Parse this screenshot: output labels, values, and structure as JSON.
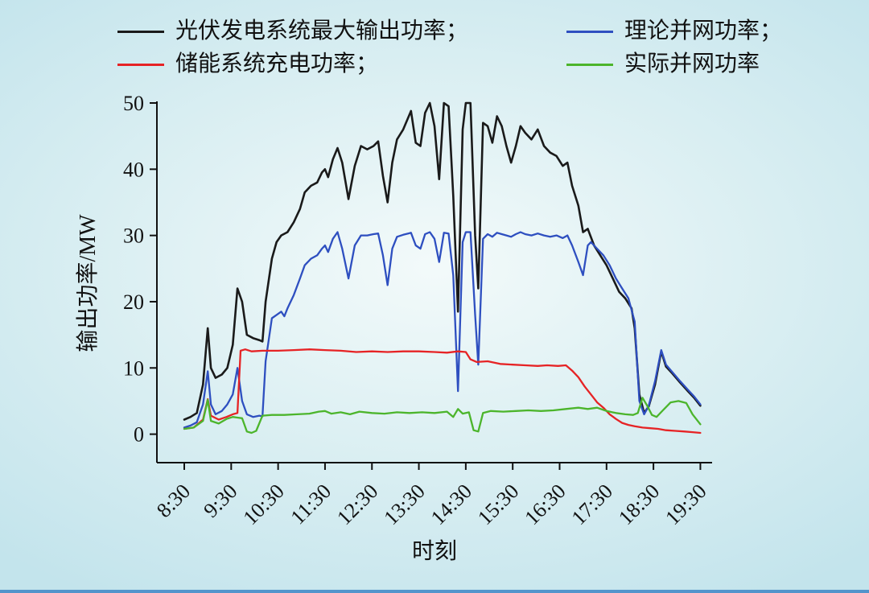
{
  "chart_data": {
    "type": "line",
    "title": "",
    "xlabel": "时刻",
    "ylabel": "输出功率/MW",
    "ylim": [
      0,
      50
    ],
    "y_ticks": [
      0,
      10,
      20,
      30,
      40,
      50
    ],
    "x_tick_labels": [
      "8:30",
      "9:30",
      "10:30",
      "11:30",
      "12:30",
      "13:30",
      "14:30",
      "15:30",
      "16:30",
      "17:30",
      "18:30",
      "19:30"
    ],
    "x_minutes_per_tick": 60,
    "grid": false,
    "legend": {
      "position": "top",
      "labels": [
        "光伏发电系统最大输出功率；",
        "理论并网功率；",
        "储能系统充电功率；",
        "实际并网功率"
      ]
    },
    "series": [
      {
        "name": "光伏发电系统最大输出功率",
        "color": "#1a1a1a",
        "width": 2.6,
        "points": [
          [
            0,
            2.2
          ],
          [
            8,
            2.6
          ],
          [
            16,
            3.2
          ],
          [
            24,
            7.5
          ],
          [
            30,
            16
          ],
          [
            34,
            10
          ],
          [
            40,
            8.5
          ],
          [
            48,
            9
          ],
          [
            55,
            10
          ],
          [
            62,
            13.5
          ],
          [
            68,
            22
          ],
          [
            74,
            20
          ],
          [
            80,
            15
          ],
          [
            88,
            14.5
          ],
          [
            96,
            14.2
          ],
          [
            100,
            14
          ],
          [
            104,
            20
          ],
          [
            112,
            26.5
          ],
          [
            118,
            29
          ],
          [
            124,
            30
          ],
          [
            132,
            30.5
          ],
          [
            140,
            32
          ],
          [
            148,
            34
          ],
          [
            154,
            36.5
          ],
          [
            162,
            37.5
          ],
          [
            170,
            38
          ],
          [
            176,
            39.5
          ],
          [
            180,
            40
          ],
          [
            184,
            38.8
          ],
          [
            190,
            41.5
          ],
          [
            196,
            43.2
          ],
          [
            202,
            41
          ],
          [
            210,
            35.5
          ],
          [
            218,
            40.5
          ],
          [
            226,
            43.5
          ],
          [
            234,
            43
          ],
          [
            242,
            43.5
          ],
          [
            248,
            44.2
          ],
          [
            254,
            39
          ],
          [
            260,
            35
          ],
          [
            266,
            41
          ],
          [
            272,
            44.5
          ],
          [
            280,
            46
          ],
          [
            290,
            48.8
          ],
          [
            296,
            44
          ],
          [
            302,
            43.5
          ],
          [
            308,
            48.5
          ],
          [
            314,
            50
          ],
          [
            320,
            46.5
          ],
          [
            326,
            38.5
          ],
          [
            332,
            50
          ],
          [
            338,
            49.5
          ],
          [
            344,
            36
          ],
          [
            350,
            18.5
          ],
          [
            356,
            46
          ],
          [
            360,
            50
          ],
          [
            366,
            50
          ],
          [
            372,
            30
          ],
          [
            376,
            22
          ],
          [
            382,
            47
          ],
          [
            388,
            46.5
          ],
          [
            394,
            44
          ],
          [
            400,
            48
          ],
          [
            406,
            46.5
          ],
          [
            412,
            43.5
          ],
          [
            418,
            41
          ],
          [
            424,
            43.5
          ],
          [
            430,
            46.5
          ],
          [
            436,
            45.5
          ],
          [
            444,
            44.5
          ],
          [
            452,
            46
          ],
          [
            460,
            43.5
          ],
          [
            468,
            42.5
          ],
          [
            476,
            42
          ],
          [
            484,
            40.5
          ],
          [
            490,
            41
          ],
          [
            496,
            37.5
          ],
          [
            504,
            34.5
          ],
          [
            510,
            30.5
          ],
          [
            516,
            31
          ],
          [
            524,
            28.5
          ],
          [
            532,
            27
          ],
          [
            540,
            25.5
          ],
          [
            548,
            23.5
          ],
          [
            556,
            21.5
          ],
          [
            564,
            20.5
          ],
          [
            572,
            19
          ],
          [
            576,
            16
          ],
          [
            582,
            6
          ],
          [
            588,
            3.2
          ],
          [
            594,
            4.2
          ],
          [
            602,
            7.5
          ],
          [
            610,
            12.5
          ],
          [
            616,
            10.2
          ],
          [
            624,
            9.2
          ],
          [
            634,
            7.8
          ],
          [
            644,
            6.5
          ],
          [
            652,
            5.5
          ],
          [
            660,
            4.3
          ]
        ]
      },
      {
        "name": "理论并网功率",
        "color": "#2e4fc0",
        "width": 2.3,
        "points": [
          [
            0,
            1.0
          ],
          [
            8,
            1.3
          ],
          [
            16,
            1.8
          ],
          [
            24,
            4.5
          ],
          [
            30,
            9.5
          ],
          [
            34,
            4.5
          ],
          [
            40,
            3
          ],
          [
            48,
            3.5
          ],
          [
            55,
            4.5
          ],
          [
            62,
            6
          ],
          [
            68,
            10
          ],
          [
            74,
            5
          ],
          [
            80,
            3
          ],
          [
            88,
            2.6
          ],
          [
            96,
            2.8
          ],
          [
            100,
            2.7
          ],
          [
            104,
            11
          ],
          [
            112,
            17.5
          ],
          [
            118,
            18
          ],
          [
            124,
            18.5
          ],
          [
            128,
            17.8
          ],
          [
            132,
            19
          ],
          [
            140,
            21
          ],
          [
            148,
            23.5
          ],
          [
            154,
            25.5
          ],
          [
            162,
            26.5
          ],
          [
            170,
            27
          ],
          [
            176,
            28
          ],
          [
            180,
            28.5
          ],
          [
            184,
            27.5
          ],
          [
            190,
            29.5
          ],
          [
            196,
            30.5
          ],
          [
            202,
            28
          ],
          [
            210,
            23.5
          ],
          [
            218,
            28.5
          ],
          [
            226,
            30
          ],
          [
            234,
            30
          ],
          [
            242,
            30.2
          ],
          [
            248,
            30.3
          ],
          [
            254,
            27
          ],
          [
            260,
            22.5
          ],
          [
            266,
            28
          ],
          [
            272,
            29.8
          ],
          [
            280,
            30.1
          ],
          [
            290,
            30.4
          ],
          [
            296,
            28.5
          ],
          [
            302,
            28
          ],
          [
            308,
            30.2
          ],
          [
            314,
            30.5
          ],
          [
            320,
            29.5
          ],
          [
            326,
            26
          ],
          [
            332,
            30.4
          ],
          [
            338,
            30.3
          ],
          [
            344,
            24
          ],
          [
            350,
            6.5
          ],
          [
            356,
            29
          ],
          [
            360,
            30.5
          ],
          [
            366,
            30.5
          ],
          [
            372,
            18
          ],
          [
            376,
            10.5
          ],
          [
            382,
            29.5
          ],
          [
            388,
            30.2
          ],
          [
            394,
            29.8
          ],
          [
            400,
            30.4
          ],
          [
            406,
            30.2
          ],
          [
            412,
            30
          ],
          [
            418,
            29.8
          ],
          [
            424,
            30.2
          ],
          [
            430,
            30.5
          ],
          [
            436,
            30.2
          ],
          [
            444,
            30
          ],
          [
            452,
            30.3
          ],
          [
            460,
            30
          ],
          [
            468,
            29.8
          ],
          [
            476,
            30
          ],
          [
            484,
            29.6
          ],
          [
            490,
            30
          ],
          [
            496,
            28.5
          ],
          [
            504,
            26
          ],
          [
            510,
            24
          ],
          [
            516,
            28.5
          ],
          [
            520,
            29
          ],
          [
            528,
            28
          ],
          [
            536,
            27
          ],
          [
            544,
            25.5
          ],
          [
            552,
            23.5
          ],
          [
            560,
            22
          ],
          [
            568,
            20.5
          ],
          [
            576,
            17
          ],
          [
            582,
            5
          ],
          [
            588,
            3
          ],
          [
            594,
            4.3
          ],
          [
            602,
            8
          ],
          [
            610,
            12.7
          ],
          [
            616,
            10.5
          ],
          [
            624,
            9.4
          ],
          [
            634,
            8
          ],
          [
            644,
            6.7
          ],
          [
            652,
            5.7
          ],
          [
            660,
            4.5
          ]
        ]
      },
      {
        "name": "储能系统充电功率",
        "color": "#e62325",
        "width": 2.3,
        "points": [
          [
            0,
            0.8
          ],
          [
            12,
            1
          ],
          [
            24,
            2.2
          ],
          [
            30,
            5.3
          ],
          [
            34,
            2.8
          ],
          [
            44,
            2.2
          ],
          [
            54,
            2.6
          ],
          [
            62,
            3
          ],
          [
            68,
            3.2
          ],
          [
            72,
            12.6
          ],
          [
            78,
            12.8
          ],
          [
            86,
            12.5
          ],
          [
            100,
            12.6
          ],
          [
            120,
            12.6
          ],
          [
            140,
            12.7
          ],
          [
            160,
            12.8
          ],
          [
            180,
            12.7
          ],
          [
            200,
            12.6
          ],
          [
            220,
            12.4
          ],
          [
            240,
            12.5
          ],
          [
            260,
            12.4
          ],
          [
            280,
            12.5
          ],
          [
            300,
            12.5
          ],
          [
            320,
            12.4
          ],
          [
            336,
            12.3
          ],
          [
            350,
            12.5
          ],
          [
            360,
            12.4
          ],
          [
            366,
            11.3
          ],
          [
            374,
            10.9
          ],
          [
            388,
            11
          ],
          [
            404,
            10.6
          ],
          [
            420,
            10.5
          ],
          [
            436,
            10.4
          ],
          [
            452,
            10.3
          ],
          [
            464,
            10.4
          ],
          [
            478,
            10.3
          ],
          [
            488,
            10.4
          ],
          [
            496,
            9.6
          ],
          [
            504,
            8.6
          ],
          [
            512,
            7.2
          ],
          [
            520,
            6
          ],
          [
            528,
            4.8
          ],
          [
            536,
            4
          ],
          [
            544,
            3
          ],
          [
            552,
            2.3
          ],
          [
            560,
            1.7
          ],
          [
            568,
            1.4
          ],
          [
            576,
            1.2
          ],
          [
            586,
            1
          ],
          [
            596,
            0.9
          ],
          [
            606,
            0.8
          ],
          [
            616,
            0.6
          ],
          [
            628,
            0.5
          ],
          [
            640,
            0.4
          ],
          [
            650,
            0.3
          ],
          [
            660,
            0.2
          ]
        ]
      },
      {
        "name": "实际并网功率",
        "color": "#4cb52c",
        "width": 2.3,
        "points": [
          [
            0,
            0.8
          ],
          [
            12,
            1
          ],
          [
            24,
            2
          ],
          [
            30,
            5.2
          ],
          [
            34,
            2
          ],
          [
            44,
            1.6
          ],
          [
            54,
            2.3
          ],
          [
            62,
            2.6
          ],
          [
            68,
            2.5
          ],
          [
            74,
            2.4
          ],
          [
            80,
            0.4
          ],
          [
            86,
            0.2
          ],
          [
            92,
            0.5
          ],
          [
            100,
            2.8
          ],
          [
            112,
            2.9
          ],
          [
            128,
            2.9
          ],
          [
            144,
            3
          ],
          [
            160,
            3.1
          ],
          [
            172,
            3.4
          ],
          [
            180,
            3.5
          ],
          [
            188,
            3.1
          ],
          [
            200,
            3.3
          ],
          [
            212,
            3
          ],
          [
            224,
            3.4
          ],
          [
            240,
            3.2
          ],
          [
            256,
            3.1
          ],
          [
            272,
            3.3
          ],
          [
            288,
            3.2
          ],
          [
            304,
            3.3
          ],
          [
            320,
            3.2
          ],
          [
            336,
            3.4
          ],
          [
            344,
            2.6
          ],
          [
            350,
            3.8
          ],
          [
            356,
            3.1
          ],
          [
            364,
            3.3
          ],
          [
            370,
            0.6
          ],
          [
            376,
            0.4
          ],
          [
            382,
            3.2
          ],
          [
            392,
            3.5
          ],
          [
            408,
            3.4
          ],
          [
            424,
            3.5
          ],
          [
            440,
            3.6
          ],
          [
            456,
            3.5
          ],
          [
            472,
            3.6
          ],
          [
            488,
            3.8
          ],
          [
            504,
            4
          ],
          [
            516,
            3.8
          ],
          [
            528,
            4
          ],
          [
            540,
            3.5
          ],
          [
            552,
            3.2
          ],
          [
            564,
            3
          ],
          [
            574,
            2.9
          ],
          [
            580,
            3.2
          ],
          [
            586,
            5.5
          ],
          [
            592,
            4.3
          ],
          [
            598,
            2.9
          ],
          [
            604,
            2.6
          ],
          [
            612,
            3.6
          ],
          [
            622,
            4.8
          ],
          [
            632,
            5
          ],
          [
            642,
            4.7
          ],
          [
            650,
            3
          ],
          [
            660,
            1.5
          ]
        ]
      }
    ]
  }
}
